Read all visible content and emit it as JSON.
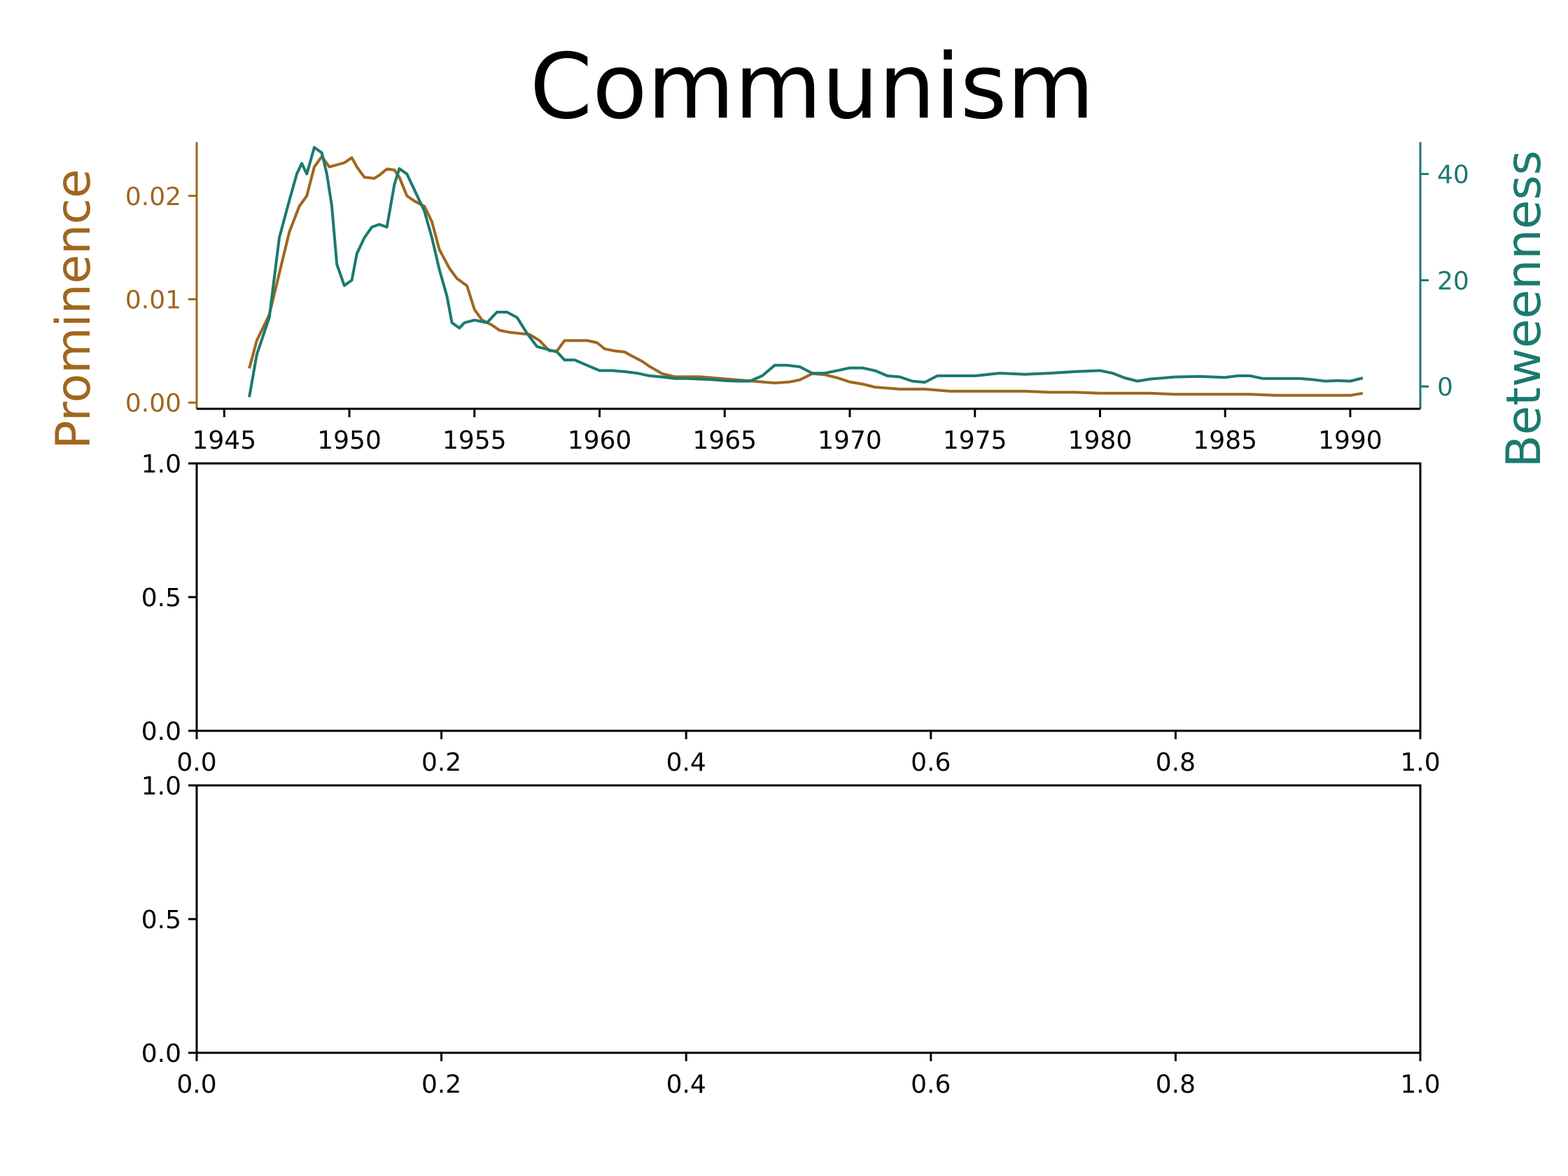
{
  "figure": {
    "title": "Communism"
  },
  "colors": {
    "prominence": "#a0661e",
    "betweenness": "#1a7a6e",
    "axis": "#000000"
  },
  "chart_data": [
    {
      "type": "line",
      "title": "Communism",
      "xlabel": "",
      "ylabel": "Prominence",
      "ylabel_right": "Betweenness",
      "xlim": [
        1943.9,
        1992.8
      ],
      "ylim": [
        -0.0006,
        0.0252
      ],
      "ylim_right": [
        -4.2,
        46.0
      ],
      "xticks": [
        1945,
        1950,
        1955,
        1960,
        1965,
        1970,
        1975,
        1980,
        1985,
        1990
      ],
      "yticks": [
        0.0,
        0.01,
        0.02
      ],
      "yticks_right": [
        0,
        20,
        40
      ],
      "ytick_labels": [
        "0.00",
        "0.01",
        "0.02"
      ],
      "ytick_labels_right": [
        "0",
        "20",
        "40"
      ],
      "grid": false,
      "series": [
        {
          "name": "Prominence",
          "axis": "left",
          "x": [
            1946.0,
            1946.3,
            1946.8,
            1947.2,
            1947.6,
            1948.0,
            1948.3,
            1948.6,
            1948.9,
            1949.2,
            1949.5,
            1949.8,
            1950.1,
            1950.3,
            1950.6,
            1951.0,
            1951.2,
            1951.5,
            1951.8,
            1952.0,
            1952.3,
            1952.6,
            1953.0,
            1953.3,
            1953.6,
            1954.0,
            1954.3,
            1954.7,
            1955.0,
            1955.3,
            1955.7,
            1956.0,
            1956.4,
            1956.8,
            1957.2,
            1957.6,
            1958.0,
            1958.3,
            1958.6,
            1959.0,
            1959.5,
            1959.9,
            1960.2,
            1960.6,
            1961.0,
            1961.3,
            1961.7,
            1962.0,
            1962.5,
            1963.0,
            1963.5,
            1964.0,
            1964.5,
            1965.0,
            1965.5,
            1966.0,
            1966.5,
            1967.0,
            1967.6,
            1968.0,
            1968.5,
            1969.0,
            1969.5,
            1970.0,
            1970.5,
            1971.0,
            1972.0,
            1973.0,
            1974.0,
            1975.0,
            1976.0,
            1977.0,
            1978.0,
            1979.0,
            1980.0,
            1981.0,
            1982.0,
            1983.0,
            1984.0,
            1985.0,
            1986.0,
            1987.0,
            1988.0,
            1989.0,
            1990.0,
            1990.5
          ],
          "values": [
            0.0033,
            0.006,
            0.0085,
            0.0125,
            0.0165,
            0.019,
            0.02,
            0.0228,
            0.0238,
            0.0228,
            0.023,
            0.0232,
            0.0237,
            0.0228,
            0.0218,
            0.0217,
            0.022,
            0.0226,
            0.0225,
            0.0218,
            0.02,
            0.0195,
            0.019,
            0.0175,
            0.0148,
            0.013,
            0.012,
            0.0113,
            0.009,
            0.008,
            0.0075,
            0.007,
            0.0068,
            0.0067,
            0.0066,
            0.006,
            0.005,
            0.005,
            0.006,
            0.006,
            0.006,
            0.0058,
            0.0052,
            0.005,
            0.0049,
            0.0045,
            0.004,
            0.0035,
            0.0028,
            0.0025,
            0.0025,
            0.0025,
            0.0024,
            0.0023,
            0.0022,
            0.0021,
            0.002,
            0.0019,
            0.002,
            0.0022,
            0.0028,
            0.0027,
            0.0024,
            0.002,
            0.0018,
            0.0015,
            0.0013,
            0.0013,
            0.0011,
            0.0011,
            0.0011,
            0.0011,
            0.001,
            0.001,
            0.0009,
            0.0009,
            0.0009,
            0.0008,
            0.0008,
            0.0008,
            0.0008,
            0.0007,
            0.0007,
            0.0007,
            0.0007,
            0.0009
          ]
        },
        {
          "name": "Betweenness",
          "axis": "right",
          "x": [
            1946.0,
            1946.3,
            1946.8,
            1947.2,
            1947.6,
            1947.9,
            1948.1,
            1948.3,
            1948.6,
            1948.9,
            1949.1,
            1949.3,
            1949.5,
            1949.8,
            1950.1,
            1950.3,
            1950.6,
            1950.9,
            1951.2,
            1951.5,
            1951.8,
            1952.0,
            1952.3,
            1952.7,
            1953.0,
            1953.3,
            1953.6,
            1953.9,
            1954.1,
            1954.4,
            1954.6,
            1955.0,
            1955.5,
            1955.9,
            1956.3,
            1956.7,
            1957.1,
            1957.5,
            1957.9,
            1958.3,
            1958.6,
            1959.0,
            1959.5,
            1960.0,
            1960.5,
            1961.0,
            1961.5,
            1962.0,
            1962.5,
            1963.0,
            1963.5,
            1964.0,
            1964.5,
            1965.0,
            1965.5,
            1966.0,
            1966.5,
            1967.0,
            1967.5,
            1968.0,
            1968.5,
            1969.0,
            1969.5,
            1970.0,
            1970.5,
            1971.0,
            1971.5,
            1972.0,
            1972.5,
            1973.0,
            1973.5,
            1974.0,
            1974.5,
            1975.0,
            1976.0,
            1977.0,
            1978.0,
            1979.0,
            1980.0,
            1980.5,
            1981.0,
            1981.5,
            1982.0,
            1983.0,
            1984.0,
            1985.0,
            1985.5,
            1986.0,
            1986.5,
            1987.0,
            1988.0,
            1988.5,
            1989.0,
            1989.5,
            1990.0,
            1990.5
          ],
          "values": [
            -2.0,
            6.0,
            13.0,
            28.0,
            35.0,
            40.0,
            42.0,
            40.0,
            45.0,
            44.0,
            40.0,
            34.0,
            23.0,
            19.0,
            20.0,
            25.0,
            28.0,
            30.0,
            30.5,
            30.0,
            38.0,
            41.0,
            40.0,
            36.0,
            33.0,
            28.0,
            22.0,
            17.0,
            12.0,
            11.0,
            12.0,
            12.5,
            12.0,
            14.0,
            14.0,
            13.0,
            10.0,
            7.5,
            7.0,
            6.5,
            5.0,
            5.0,
            4.0,
            3.0,
            3.0,
            2.8,
            2.5,
            2.0,
            1.8,
            1.5,
            1.5,
            1.4,
            1.3,
            1.1,
            1.0,
            1.0,
            2.0,
            4.0,
            4.0,
            3.7,
            2.5,
            2.5,
            3.0,
            3.5,
            3.5,
            3.0,
            2.0,
            1.8,
            1.0,
            0.8,
            2.0,
            2.0,
            2.0,
            2.0,
            2.5,
            2.3,
            2.5,
            2.8,
            3.0,
            2.5,
            1.6,
            1.0,
            1.4,
            1.8,
            1.9,
            1.7,
            2.0,
            2.0,
            1.5,
            1.5,
            1.5,
            1.3,
            1.0,
            1.1,
            1.0,
            1.6
          ]
        }
      ]
    },
    {
      "type": "line",
      "title": "",
      "xlabel": "",
      "ylabel": "",
      "xlim": [
        0.0,
        1.0
      ],
      "ylim": [
        0.0,
        1.0
      ],
      "xticks": [
        0.0,
        0.2,
        0.4,
        0.6,
        0.8,
        1.0
      ],
      "yticks": [
        0.0,
        0.5,
        1.0
      ],
      "xtick_labels": [
        "0.0",
        "0.2",
        "0.4",
        "0.6",
        "0.8",
        "1.0"
      ],
      "ytick_labels": [
        "0.0",
        "0.5",
        "1.0"
      ],
      "series": []
    },
    {
      "type": "line",
      "title": "",
      "xlabel": "",
      "ylabel": "",
      "xlim": [
        0.0,
        1.0
      ],
      "ylim": [
        0.0,
        1.0
      ],
      "xticks": [
        0.0,
        0.2,
        0.4,
        0.6,
        0.8,
        1.0
      ],
      "yticks": [
        0.0,
        0.5,
        1.0
      ],
      "xtick_labels": [
        "0.0",
        "0.2",
        "0.4",
        "0.6",
        "0.8",
        "1.0"
      ],
      "ytick_labels": [
        "0.0",
        "0.5",
        "1.0"
      ],
      "series": []
    }
  ]
}
